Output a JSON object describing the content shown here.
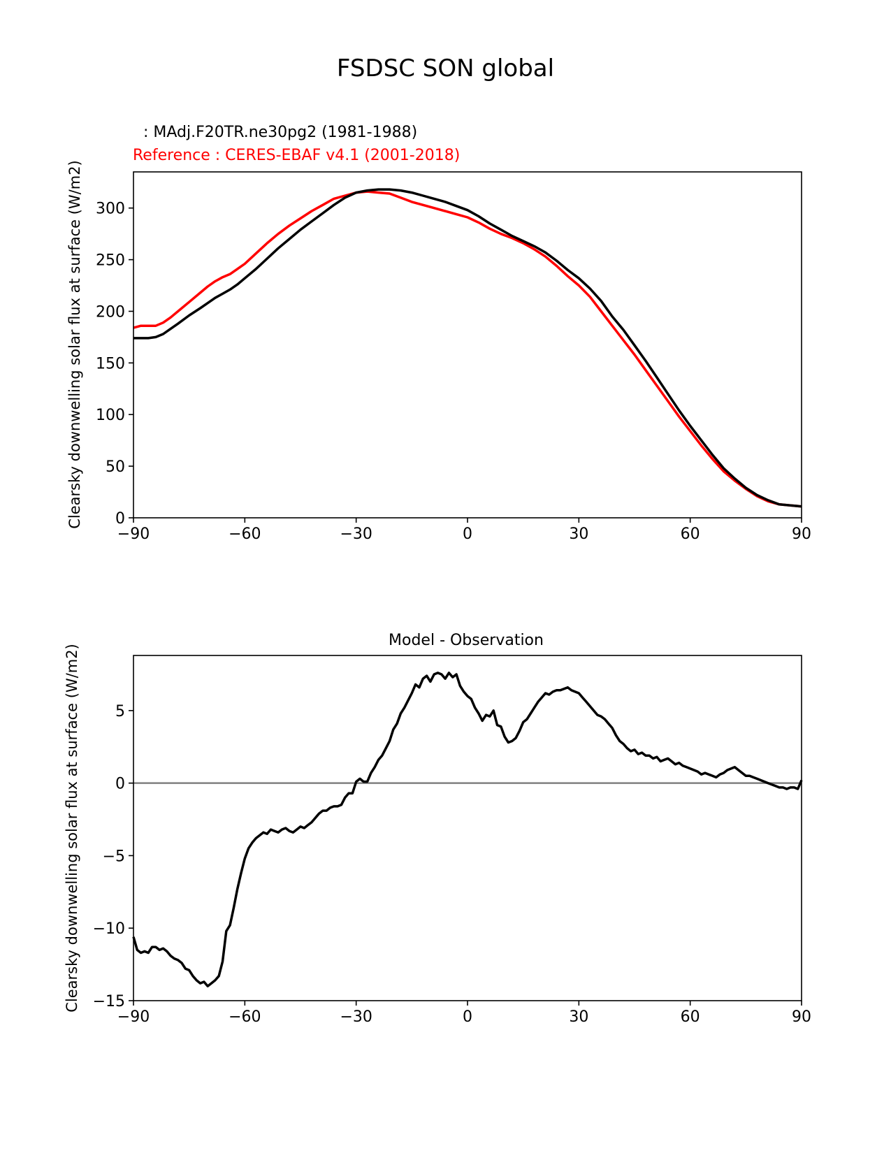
{
  "figure": {
    "title": "FSDSC SON global"
  },
  "chart_data": [
    {
      "type": "line",
      "title": "",
      "header_lines": [
        ": MAdj.F20TR.ne30pg2 (1981-1988)",
        "Reference : CERES-EBAF v4.1 (2001-2018)"
      ],
      "header_colors": [
        "#000000",
        "#ff0000"
      ],
      "xlabel": "",
      "ylabel": "Clearsky downwelling solar flux at surface (W/m2)",
      "xlim": [
        -90,
        90
      ],
      "ylim": [
        0,
        335
      ],
      "xticks": [
        -90,
        -60,
        -30,
        0,
        30,
        60,
        90
      ],
      "xtick_labels": [
        "−90",
        "−60",
        "−30",
        "0",
        "30",
        "60",
        "90"
      ],
      "yticks": [
        0,
        50,
        100,
        150,
        200,
        250,
        300
      ],
      "ytick_labels": [
        "0",
        "50",
        "100",
        "150",
        "200",
        "250",
        "300"
      ],
      "grid": false,
      "series": [
        {
          "color": "#ff0000",
          "x": [
            -90,
            -88,
            -86,
            -84,
            -82,
            -80,
            -78,
            -75,
            -72,
            -70,
            -68,
            -66,
            -64,
            -62,
            -60,
            -57,
            -54,
            -51,
            -48,
            -45,
            -42,
            -39,
            -36,
            -33,
            -30,
            -27,
            -24,
            -21,
            -18,
            -15,
            -12,
            -9,
            -6,
            -3,
            0,
            3,
            6,
            9,
            12,
            15,
            18,
            21,
            24,
            27,
            30,
            33,
            36,
            39,
            42,
            45,
            48,
            51,
            54,
            57,
            60,
            63,
            66,
            69,
            72,
            75,
            78,
            81,
            84,
            87,
            90
          ],
          "values": [
            184,
            186,
            186,
            186,
            189,
            194,
            200,
            209,
            218,
            224,
            229,
            233,
            236,
            241,
            246,
            256,
            266,
            275,
            283,
            290,
            297,
            303,
            309,
            312,
            315,
            316,
            315,
            314,
            310,
            306,
            303,
            300,
            297,
            294,
            291,
            286,
            280,
            275,
            271,
            266,
            260,
            253,
            244,
            234,
            225,
            214,
            200,
            186,
            172,
            158,
            143,
            128,
            113,
            98,
            84,
            70,
            57,
            45,
            36,
            28,
            21,
            16,
            13,
            12,
            11
          ]
        },
        {
          "color": "#000000",
          "x": [
            -90,
            -88,
            -86,
            -84,
            -82,
            -80,
            -78,
            -75,
            -72,
            -70,
            -68,
            -66,
            -64,
            -62,
            -60,
            -57,
            -54,
            -51,
            -48,
            -45,
            -42,
            -39,
            -36,
            -33,
            -30,
            -27,
            -24,
            -21,
            -18,
            -15,
            -12,
            -9,
            -6,
            -3,
            0,
            3,
            6,
            9,
            12,
            15,
            18,
            21,
            24,
            27,
            30,
            33,
            36,
            39,
            42,
            45,
            48,
            51,
            54,
            57,
            60,
            63,
            66,
            69,
            72,
            75,
            78,
            81,
            84,
            87,
            90
          ],
          "values": [
            174,
            174,
            174,
            175,
            178,
            183,
            188,
            196,
            203,
            208,
            213,
            217,
            221,
            226,
            232,
            241,
            251,
            261,
            270,
            279,
            287,
            295,
            303,
            310,
            315,
            317,
            318,
            318,
            317,
            315,
            312,
            309,
            306,
            302,
            298,
            292,
            285,
            279,
            273,
            268,
            263,
            257,
            249,
            240,
            232,
            222,
            210,
            195,
            182,
            167,
            152,
            136,
            120,
            104,
            89,
            75,
            61,
            48,
            38,
            29,
            22,
            17,
            13,
            12,
            11
          ]
        }
      ]
    },
    {
      "type": "line",
      "title": "Model - Observation",
      "xlabel": "",
      "ylabel": "Clearsky downwelling solar flux at surface (W/m2)",
      "xlim": [
        -90,
        90
      ],
      "ylim": [
        -15,
        8.8
      ],
      "xticks": [
        -90,
        -60,
        -30,
        0,
        30,
        60,
        90
      ],
      "xtick_labels": [
        "−90",
        "−60",
        "−30",
        "0",
        "30",
        "60",
        "90"
      ],
      "yticks": [
        -15,
        -10,
        -5,
        0,
        5
      ],
      "ytick_labels": [
        "−15",
        "−10",
        "−5",
        "0",
        "5"
      ],
      "grid": false,
      "zero_line_color": "#808080",
      "series": [
        {
          "color": "#000000",
          "x": [
            -90,
            -89,
            -88,
            -87,
            -86,
            -85,
            -84,
            -83,
            -82,
            -81,
            -80,
            -79,
            -78,
            -77,
            -76,
            -75,
            -74,
            -73,
            -72,
            -71,
            -70,
            -69,
            -68,
            -67,
            -66,
            -65,
            -64,
            -63,
            -62,
            -61,
            -60,
            -59,
            -58,
            -57,
            -56,
            -55,
            -54,
            -53,
            -52,
            -51,
            -50,
            -49,
            -48,
            -47,
            -46,
            -45,
            -44,
            -43,
            -42,
            -41,
            -40,
            -39,
            -38,
            -37,
            -36,
            -35,
            -34,
            -33,
            -32,
            -31,
            -30,
            -29,
            -28,
            -27,
            -26,
            -25,
            -24,
            -23,
            -22,
            -21,
            -20,
            -19,
            -18,
            -17,
            -16,
            -15,
            -14,
            -13,
            -12,
            -11,
            -10,
            -9,
            -8,
            -7,
            -6,
            -5,
            -4,
            -3,
            -2,
            -1,
            0,
            1,
            2,
            3,
            4,
            5,
            6,
            7,
            8,
            9,
            10,
            11,
            12,
            13,
            14,
            15,
            16,
            17,
            18,
            19,
            20,
            21,
            22,
            23,
            24,
            25,
            26,
            27,
            28,
            29,
            30,
            31,
            32,
            33,
            34,
            35,
            36,
            37,
            38,
            39,
            40,
            41,
            42,
            43,
            44,
            45,
            46,
            47,
            48,
            49,
            50,
            51,
            52,
            53,
            54,
            55,
            56,
            57,
            58,
            59,
            60,
            61,
            62,
            63,
            64,
            65,
            66,
            67,
            68,
            69,
            70,
            71,
            72,
            73,
            74,
            75,
            76,
            77,
            78,
            79,
            80,
            81,
            82,
            83,
            84,
            85,
            86,
            87,
            88,
            89,
            90
          ],
          "values": [
            -10.6,
            -11.5,
            -11.7,
            -11.6,
            -11.7,
            -11.3,
            -11.3,
            -11.5,
            -11.4,
            -11.6,
            -11.9,
            -12.1,
            -12.2,
            -12.4,
            -12.8,
            -12.9,
            -13.3,
            -13.6,
            -13.8,
            -13.7,
            -14.0,
            -13.8,
            -13.6,
            -13.3,
            -12.3,
            -10.2,
            -9.8,
            -8.6,
            -7.3,
            -6.2,
            -5.2,
            -4.5,
            -4.1,
            -3.8,
            -3.6,
            -3.4,
            -3.5,
            -3.2,
            -3.3,
            -3.4,
            -3.2,
            -3.1,
            -3.3,
            -3.4,
            -3.2,
            -3.0,
            -3.1,
            -2.9,
            -2.7,
            -2.4,
            -2.1,
            -1.9,
            -1.9,
            -1.7,
            -1.6,
            -1.6,
            -1.5,
            -1.0,
            -0.7,
            -0.7,
            0.1,
            0.3,
            0.1,
            0.1,
            0.7,
            1.1,
            1.6,
            1.9,
            2.4,
            2.9,
            3.7,
            4.1,
            4.8,
            5.2,
            5.7,
            6.2,
            6.8,
            6.6,
            7.2,
            7.4,
            7.0,
            7.5,
            7.6,
            7.5,
            7.2,
            7.6,
            7.3,
            7.5,
            6.7,
            6.3,
            6.0,
            5.8,
            5.2,
            4.8,
            4.3,
            4.7,
            4.6,
            5.0,
            4.0,
            3.9,
            3.2,
            2.8,
            2.9,
            3.1,
            3.6,
            4.2,
            4.4,
            4.8,
            5.2,
            5.6,
            5.9,
            6.2,
            6.1,
            6.3,
            6.4,
            6.4,
            6.5,
            6.6,
            6.4,
            6.3,
            6.2,
            5.9,
            5.6,
            5.3,
            5.0,
            4.7,
            4.6,
            4.4,
            4.1,
            3.8,
            3.3,
            2.9,
            2.7,
            2.4,
            2.2,
            2.3,
            2.0,
            2.1,
            1.9,
            1.9,
            1.7,
            1.8,
            1.5,
            1.6,
            1.7,
            1.5,
            1.3,
            1.4,
            1.2,
            1.1,
            1.0,
            0.9,
            0.8,
            0.6,
            0.7,
            0.6,
            0.5,
            0.4,
            0.6,
            0.7,
            0.9,
            1.0,
            1.1,
            0.9,
            0.7,
            0.5,
            0.5,
            0.4,
            0.3,
            0.2,
            0.1,
            0.0,
            -0.1,
            -0.2,
            -0.3,
            -0.3,
            -0.4,
            -0.3,
            -0.3,
            -0.4,
            0.2
          ]
        }
      ]
    }
  ]
}
